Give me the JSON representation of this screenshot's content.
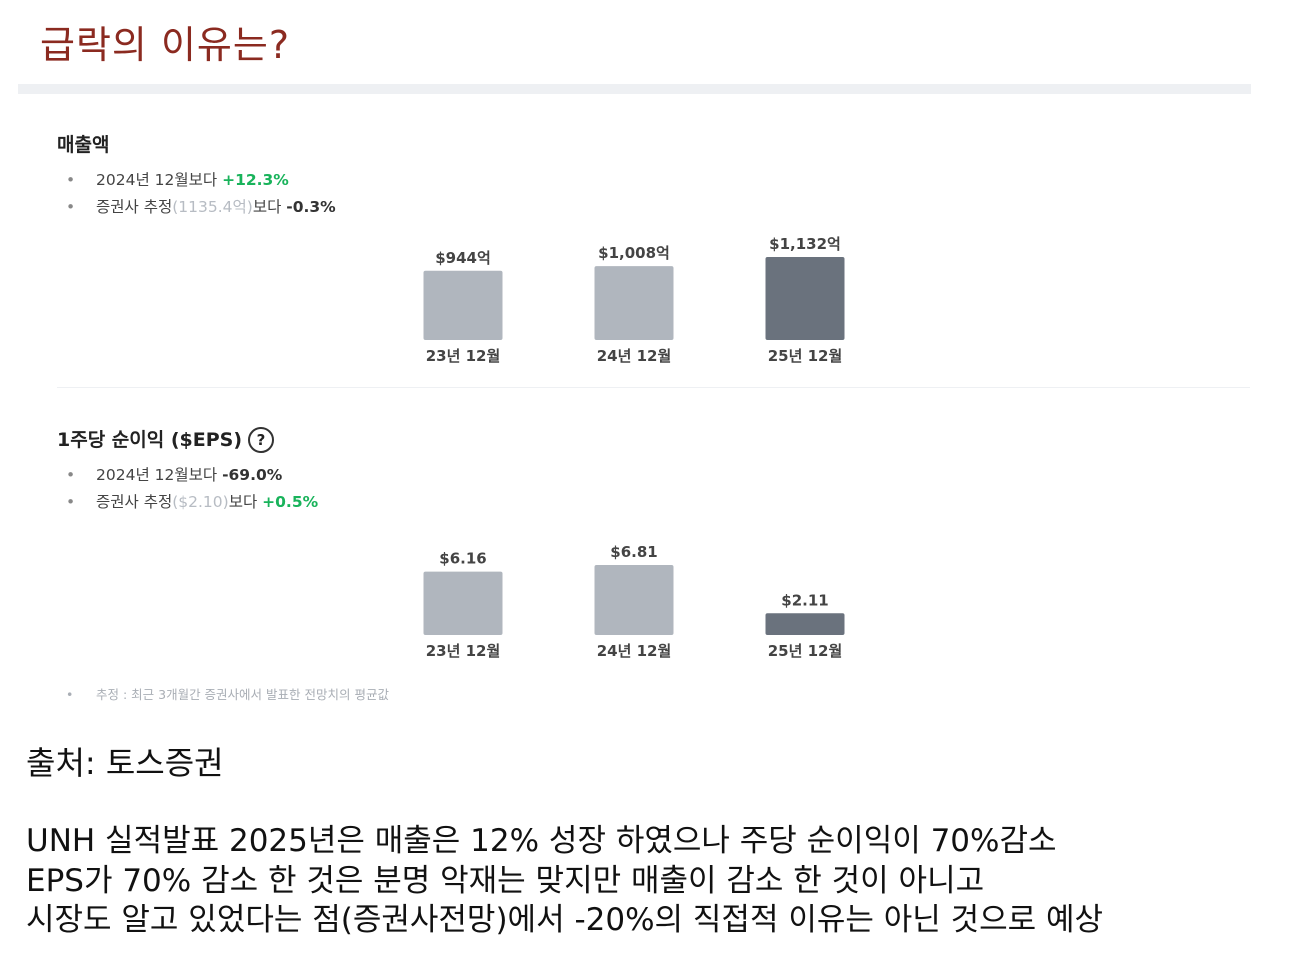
{
  "slide": {
    "title": "급락의 이유는?",
    "source": "출처: 토스증권",
    "summary_lines": [
      "UNH 실적발표 2025년은 매출은 12% 성장 하였으나 주당 순이익이 70%감소",
      "EPS가 70% 감소 한 것은 분명 악재는 맞지만 매출이 감소 한 것이 아니고",
      "시장도 알고 있었다는 점(증권사전망)에서 -20%의 직접적 이유는 아닌 것으로 예상"
    ]
  },
  "revenue": {
    "title": "매출액",
    "bullets": [
      {
        "dot": "•",
        "prefix": "2024년 12월보다 ",
        "muted": "",
        "suffix": "",
        "change": "+12.3%",
        "change_color": "#19b35b"
      },
      {
        "dot": "•",
        "prefix": "증권사 추정",
        "muted": "(1135.4억)",
        "suffix": "보다 ",
        "change": "-0.3%",
        "change_color": "#333333"
      }
    ]
  },
  "eps": {
    "title": "1주당 순이익 ($EPS)",
    "help_icon": "question-circle-icon",
    "help_glyph": "?",
    "bullets": [
      {
        "dot": "•",
        "prefix": "2024년 12월보다 ",
        "muted": "",
        "suffix": "",
        "change": "-69.0%",
        "change_color": "#333333"
      },
      {
        "dot": "•",
        "prefix": "증권사 추정",
        "muted": "($2.10)",
        "suffix": "보다 ",
        "change": "+0.5%",
        "change_color": "#19b35b"
      }
    ]
  },
  "footnote": {
    "dot": "•",
    "text": "추정 : 최근 3개월간 증권사에서 발표한 전망치의 평균값"
  },
  "colors": {
    "past_bar": "#b0b6be",
    "current_bar": "#6a727d",
    "title": "#8b2a20"
  },
  "chart_data": [
    {
      "type": "bar",
      "title": "매출액",
      "categories": [
        "23년 12월",
        "24년 12월",
        "25년 12월"
      ],
      "values": [
        944,
        1008,
        1132
      ],
      "value_labels": [
        "$944억",
        "$1,008억",
        "$1,132억"
      ],
      "highlight_index": 2
    },
    {
      "type": "bar",
      "title": "1주당 순이익 ($EPS)",
      "categories": [
        "23년 12월",
        "24년 12월",
        "25년 12월"
      ],
      "values": [
        6.16,
        6.81,
        2.11
      ],
      "value_labels": [
        "$6.16",
        "$6.81",
        "$2.11"
      ],
      "highlight_index": 2
    }
  ]
}
